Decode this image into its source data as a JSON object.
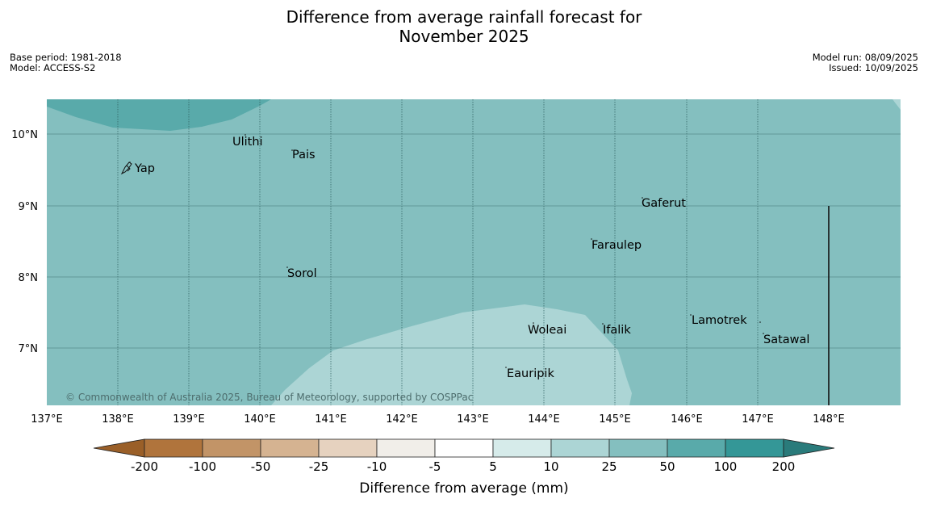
{
  "title_line1": "Difference from average rainfall forecast for",
  "title_line2": "November 2025",
  "base_period": "Base period: 1981-2018",
  "model": "Model: ACCESS-S2",
  "model_run": "Model run: 08/09/2025",
  "issued": "Issued: 10/09/2025",
  "copyright": "© Commonwealth of Australia 2025, Bureau of Meteorology, supported by COSPPac",
  "lat_labels": [
    "10°N",
    "9°N",
    "8°N",
    "7°N"
  ],
  "lon_labels": [
    "137°E",
    "138°E",
    "139°E",
    "140°E",
    "141°E",
    "142°E",
    "143°E",
    "144°E",
    "145°E",
    "146°E",
    "147°E",
    "148°E"
  ],
  "places": {
    "ulithi": "Ulithi",
    "pais": "Pais",
    "yap": "Yap",
    "gaferut": "Gaferut",
    "faraulep": "Faraulep",
    "sorol": "Sorol",
    "lamotrek": "Lamotrek",
    "satawal": "Satawal",
    "woleai": "Woleai",
    "ifalik": "Ifalik",
    "eauripik": "Eauripik"
  },
  "colorbar": {
    "ticks": [
      "-200",
      "-100",
      "-50",
      "-25",
      "-10",
      "-5",
      "5",
      "10",
      "25",
      "50",
      "100",
      "200"
    ],
    "label": "Difference from average (mm)",
    "colors": {
      "under": "#9a5f28",
      "bins": [
        "#b0743c",
        "#c29467",
        "#d5b391",
        "#e6d2bf",
        "#f1eee9",
        "#ffffff",
        "#d6ebea",
        "#acd5d5",
        "#84bfbf",
        "#59aaaa",
        "#349797"
      ],
      "over": "#2a7b7b"
    }
  },
  "map_colors": {
    "band_25_50": "#84bfbf",
    "band_50_100": "#59aaaa",
    "band_10_25": "#acd5d5"
  }
}
